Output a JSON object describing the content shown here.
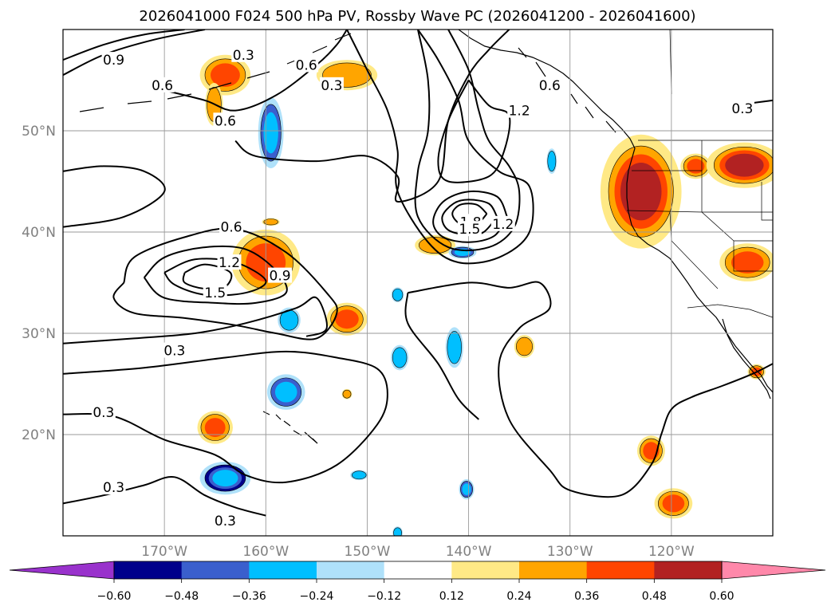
{
  "chart_data": {
    "type": "heatmap",
    "title": "2026041000 F024 500 hPa PV, Rossby Wave PC (2026041200 - 2026041600)",
    "map": {
      "lon_range": [
        -180,
        -110
      ],
      "lat_range": [
        10,
        60
      ],
      "lon_ticks": [
        -170,
        -160,
        -150,
        -140,
        -130,
        -120
      ],
      "lon_tick_labels": [
        "170°W",
        "160°W",
        "150°W",
        "140°W",
        "130°W",
        "120°W"
      ],
      "lat_ticks": [
        20,
        30,
        40,
        50
      ],
      "lat_tick_labels": [
        "20°N",
        "30°N",
        "40°N",
        "50°N"
      ],
      "grid": true
    },
    "colorbar": {
      "orientation": "horizontal",
      "extend": "both",
      "boundaries": [
        -0.6,
        -0.48,
        -0.36,
        -0.24,
        -0.12,
        0.12,
        0.24,
        0.36,
        0.48,
        0.6
      ],
      "tick_labels": [
        "−0.60",
        "−0.48",
        "−0.36",
        "−0.24",
        "−0.12",
        "0.12",
        "0.24",
        "0.36",
        "0.48",
        "0.60"
      ],
      "colors": [
        "#9932cc",
        "#00008b",
        "#3a5fcd",
        "#00bfff",
        "#afe1fa",
        "#ffffff",
        "#ffe986",
        "#ffa500",
        "#ff4500",
        "#b22222",
        "#ff88aa"
      ]
    },
    "contour_labels": [
      {
        "text": "0.9",
        "lon": -175.0,
        "lat": 57.0
      },
      {
        "text": "0.6",
        "lon": -170.2,
        "lat": 54.5
      },
      {
        "text": "0.3",
        "lon": -162.2,
        "lat": 57.5
      },
      {
        "text": "0.6",
        "lon": -156.0,
        "lat": 56.5
      },
      {
        "text": "0.3",
        "lon": -153.5,
        "lat": 54.5
      },
      {
        "text": "0.6",
        "lon": -164.0,
        "lat": 51.0
      },
      {
        "text": "0.6",
        "lon": -163.4,
        "lat": 40.5
      },
      {
        "text": "1.2",
        "lon": -163.6,
        "lat": 37.0
      },
      {
        "text": "0.9",
        "lon": -158.6,
        "lat": 35.7
      },
      {
        "text": "1.5",
        "lon": -165.0,
        "lat": 34.0
      },
      {
        "text": "0.3",
        "lon": -169.0,
        "lat": 28.3
      },
      {
        "text": "0.3",
        "lon": -176.0,
        "lat": 22.2
      },
      {
        "text": "0.3",
        "lon": -175.0,
        "lat": 14.8
      },
      {
        "text": "0.3",
        "lon": -164.0,
        "lat": 11.5
      },
      {
        "text": "1.2",
        "lon": -135.0,
        "lat": 52.0
      },
      {
        "text": "0.6",
        "lon": -132.0,
        "lat": 54.5
      },
      {
        "text": "1.8",
        "lon": -139.8,
        "lat": 41.0
      },
      {
        "text": "1.5",
        "lon": -139.9,
        "lat": 40.3
      },
      {
        "text": "1.2",
        "lon": -136.6,
        "lat": 40.8
      },
      {
        "text": "0.3",
        "lon": -113.0,
        "lat": 52.2
      }
    ],
    "contours": [
      {
        "value": 0.3,
        "points": [
          [
            -180,
            26.0
          ],
          [
            -172,
            26.6
          ],
          [
            -164,
            27.6
          ],
          [
            -158,
            28.2
          ],
          [
            -153,
            27.6
          ],
          [
            -149,
            26.5
          ],
          [
            -148,
            24.0
          ],
          [
            -149,
            21.0
          ],
          [
            -153,
            17.0
          ],
          [
            -158,
            15.3
          ],
          [
            -162,
            16.0
          ],
          [
            -165,
            18.0
          ],
          [
            -170,
            19.5
          ],
          [
            -175,
            21.8
          ],
          [
            -180,
            22.0
          ]
        ]
      },
      {
        "value": 0.3,
        "points": [
          [
            -180,
            13.2
          ],
          [
            -176,
            14.0
          ],
          [
            -172,
            15.0
          ],
          [
            -169,
            15.8
          ],
          [
            -166,
            14.0
          ],
          [
            -163,
            12.8
          ],
          [
            -160,
            12.0
          ]
        ]
      },
      {
        "value": 0.3,
        "points": [
          [
            -180,
            29.0
          ],
          [
            -173,
            29.5
          ],
          [
            -167,
            30.0
          ],
          [
            -162,
            31.0
          ],
          [
            -157,
            32.5
          ],
          [
            -155,
            33.5
          ],
          [
            -154,
            30.5
          ],
          [
            -156,
            29.7
          ]
        ]
      },
      {
        "value": 0.3,
        "points": [
          [
            -180,
            46.0
          ],
          [
            -176,
            46.5
          ],
          [
            -172,
            46.0
          ],
          [
            -170,
            44.0
          ],
          [
            -174,
            41.5
          ],
          [
            -180,
            40.5
          ]
        ]
      },
      {
        "value": 0.3,
        "points": [
          [
            -163,
            49.0
          ],
          [
            -161,
            47.5
          ],
          [
            -155,
            47.0
          ],
          [
            -150,
            47.5
          ],
          [
            -147,
            45.5
          ],
          [
            -147,
            43.0
          ],
          [
            -143,
            45.0
          ],
          [
            -142,
            51.0
          ],
          [
            -140,
            55.5
          ],
          [
            -138,
            58.0
          ],
          [
            -136,
            60.0
          ]
        ]
      },
      {
        "value": 0.3,
        "points": [
          [
            -146,
            34.0
          ],
          [
            -140,
            35.0
          ],
          [
            -136,
            34.5
          ],
          [
            -133,
            35.0
          ],
          [
            -132,
            32.5
          ],
          [
            -135,
            30.5
          ],
          [
            -137,
            27.0
          ],
          [
            -136,
            21.5
          ],
          [
            -132,
            16.5
          ],
          [
            -130,
            14.5
          ],
          [
            -125,
            14.0
          ],
          [
            -122,
            17.0
          ],
          [
            -121,
            20.0
          ],
          [
            -120,
            22.5
          ],
          [
            -118,
            23.7
          ],
          [
            -115,
            24.8
          ],
          [
            -112,
            26.0
          ],
          [
            -110,
            27.0
          ]
        ]
      },
      {
        "value": 0.3,
        "points": [
          [
            -146,
            34.0
          ],
          [
            -146,
            31.0
          ],
          [
            -143,
            27.0
          ],
          [
            -141,
            23.5
          ],
          [
            -139,
            21.5
          ]
        ]
      },
      {
        "value": 0.3,
        "points": [
          [
            -180,
            55.5
          ],
          [
            -176,
            57.5
          ],
          [
            -171,
            59.0
          ],
          [
            -166,
            60.0
          ]
        ]
      },
      {
        "value": 0.3,
        "points": [
          [
            -114,
            52.5
          ],
          [
            -110,
            53.0
          ]
        ]
      },
      {
        "value": 0.6,
        "points": [
          [
            -180,
            57.0
          ],
          [
            -176,
            58.5
          ],
          [
            -172,
            59.5
          ],
          [
            -168,
            60.0
          ]
        ]
      },
      {
        "value": 0.6,
        "points": [
          [
            -170,
            54.0
          ],
          [
            -166,
            53.0
          ],
          [
            -163,
            52.0
          ],
          [
            -159,
            53.5
          ],
          [
            -155,
            56.5
          ],
          [
            -153,
            58.5
          ],
          [
            -152,
            60.0
          ]
        ]
      },
      {
        "value": 0.6,
        "points": [
          [
            -174,
            35.0
          ],
          [
            -173,
            37.5
          ],
          [
            -168,
            39.5
          ],
          [
            -163,
            40.3
          ],
          [
            -158,
            38.0
          ],
          [
            -154,
            34.0
          ],
          [
            -153,
            32.0
          ],
          [
            -155,
            29.5
          ],
          [
            -159,
            30.0
          ],
          [
            -163,
            30.8
          ],
          [
            -168,
            31.5
          ],
          [
            -173,
            32.0
          ],
          [
            -175,
            33.5
          ],
          [
            -174,
            35.0
          ]
        ]
      },
      {
        "value": 0.6,
        "points": [
          [
            -145,
            60.0
          ],
          [
            -143,
            57.0
          ],
          [
            -141,
            53.0
          ],
          [
            -140,
            49.0
          ],
          [
            -137,
            46.0
          ],
          [
            -134,
            44.5
          ],
          [
            -134,
            40.0
          ],
          [
            -137,
            37.5
          ],
          [
            -141,
            37.0
          ],
          [
            -144,
            39.0
          ],
          [
            -147,
            44.0
          ],
          [
            -147,
            48.0
          ],
          [
            -148,
            52.0
          ],
          [
            -150,
            56.0
          ],
          [
            -152,
            60.0
          ]
        ]
      },
      {
        "value": 0.9,
        "points": [
          [
            -172,
            35.5
          ],
          [
            -170,
            37.5
          ],
          [
            -166,
            38.5
          ],
          [
            -162,
            38.3
          ],
          [
            -159,
            36.2
          ],
          [
            -158,
            34.0
          ],
          [
            -161,
            33.0
          ],
          [
            -165,
            33.0
          ],
          [
            -170,
            33.5
          ],
          [
            -172,
            35.5
          ]
        ]
      },
      {
        "value": 0.9,
        "points": [
          [
            -142,
            60.0
          ],
          [
            -140,
            56.0
          ],
          [
            -139,
            52.0
          ],
          [
            -138,
            49.0
          ],
          [
            -136,
            46.5
          ],
          [
            -135,
            44.0
          ],
          [
            -135.5,
            40.5
          ],
          [
            -138,
            38.5
          ],
          [
            -142,
            38.5
          ],
          [
            -145,
            41.5
          ],
          [
            -145,
            46.0
          ],
          [
            -144,
            50.0
          ],
          [
            -144,
            55.0
          ],
          [
            -145,
            60.0
          ]
        ]
      },
      {
        "value": 1.2,
        "points": [
          [
            -170,
            36.0
          ],
          [
            -167,
            37.3
          ],
          [
            -163,
            37.0
          ],
          [
            -160,
            35.2
          ],
          [
            -162,
            34.0
          ],
          [
            -166,
            33.8
          ],
          [
            -169,
            34.8
          ],
          [
            -170,
            36.0
          ]
        ]
      },
      {
        "value": 1.2,
        "points": [
          [
            -140,
            55.0
          ],
          [
            -138,
            52.5
          ],
          [
            -136,
            51.5
          ],
          [
            -136.5,
            48.0
          ],
          [
            -138,
            45.5
          ],
          [
            -142,
            45.0
          ],
          [
            -143,
            47.0
          ],
          [
            -142,
            51.0
          ],
          [
            -140,
            55.0
          ]
        ]
      },
      {
        "value": 1.2,
        "points": [
          [
            -136.2,
            41.5
          ],
          [
            -137.5,
            39.6
          ],
          [
            -140,
            39.0
          ],
          [
            -142.5,
            39.5
          ],
          [
            -143.5,
            41.0
          ],
          [
            -142.5,
            43.0
          ],
          [
            -140,
            44.0
          ],
          [
            -137.2,
            43.5
          ],
          [
            -136.2,
            41.5
          ]
        ]
      },
      {
        "value": 1.5,
        "points": [
          [
            -168,
            36.0
          ],
          [
            -166,
            36.8
          ],
          [
            -163.5,
            36.0
          ],
          [
            -164,
            34.6
          ],
          [
            -166,
            34.4
          ],
          [
            -168,
            35.0
          ],
          [
            -168,
            36.0
          ]
        ]
      },
      {
        "value": 1.5,
        "points": [
          [
            -137.2,
            41.5
          ],
          [
            -138.5,
            40.0
          ],
          [
            -140,
            39.7
          ],
          [
            -142,
            40.2
          ],
          [
            -142.6,
            41.5
          ],
          [
            -141.5,
            42.8
          ],
          [
            -140,
            43.2
          ],
          [
            -138,
            42.8
          ],
          [
            -137.2,
            41.5
          ]
        ]
      },
      {
        "value": 1.8,
        "points": [
          [
            -138.2,
            41.8
          ],
          [
            -139.2,
            40.8
          ],
          [
            -140.8,
            40.8
          ],
          [
            -141.6,
            41.8
          ],
          [
            -140.8,
            42.7
          ],
          [
            -139.2,
            42.7
          ],
          [
            -138.2,
            41.8
          ]
        ]
      }
    ],
    "pv_anomaly_areas": [
      {
        "lon": -164.0,
        "lat": 55.5,
        "rlon": 2.0,
        "rlat": 1.6,
        "value": 0.36
      },
      {
        "lon": -165.1,
        "lat": 52.6,
        "rlon": 0.7,
        "rlat": 1.7,
        "value": 0.24
      },
      {
        "lon": -152.0,
        "lat": 55.5,
        "rlon": 2.4,
        "rlat": 1.2,
        "value": 0.24
      },
      {
        "lon": -159.5,
        "lat": 49.8,
        "rlon": 1.0,
        "rlat": 2.8,
        "value": -0.36
      },
      {
        "lon": -160.0,
        "lat": 37.0,
        "rlon": 2.7,
        "rlat": 2.6,
        "value": 0.36
      },
      {
        "lon": -159.5,
        "lat": 41.0,
        "rlon": 0.7,
        "rlat": 0.3,
        "value": 0.24
      },
      {
        "lon": -157.7,
        "lat": 31.3,
        "rlon": 0.9,
        "rlat": 1.0,
        "value": -0.24
      },
      {
        "lon": -152.0,
        "lat": 31.4,
        "rlon": 1.6,
        "rlat": 1.3,
        "value": 0.36
      },
      {
        "lon": -147.0,
        "lat": 33.8,
        "rlon": 0.5,
        "rlat": 0.6,
        "value": -0.24
      },
      {
        "lon": -146.8,
        "lat": 27.6,
        "rlon": 0.7,
        "rlat": 1.0,
        "value": -0.24
      },
      {
        "lon": -143.3,
        "lat": 38.7,
        "rlon": 1.6,
        "rlat": 0.8,
        "value": 0.24
      },
      {
        "lon": -140.6,
        "lat": 38.0,
        "rlon": 1.1,
        "rlat": 0.5,
        "value": -0.36
      },
      {
        "lon": -141.4,
        "lat": 28.6,
        "rlon": 0.7,
        "rlat": 1.6,
        "value": -0.24
      },
      {
        "lon": -158.0,
        "lat": 24.2,
        "rlon": 1.5,
        "rlat": 1.4,
        "value": -0.36
      },
      {
        "lon": -152.0,
        "lat": 24.0,
        "rlon": 0.4,
        "rlat": 0.4,
        "value": 0.24
      },
      {
        "lon": -165.0,
        "lat": 20.7,
        "rlon": 1.4,
        "rlat": 1.3,
        "value": 0.36
      },
      {
        "lon": -164.0,
        "lat": 15.7,
        "rlon": 2.0,
        "rlat": 1.3,
        "value": -0.48
      },
      {
        "lon": -150.8,
        "lat": 16.0,
        "rlon": 0.7,
        "rlat": 0.4,
        "value": -0.24
      },
      {
        "lon": -147.0,
        "lat": 10.3,
        "rlon": 0.4,
        "rlat": 0.5,
        "value": -0.24
      },
      {
        "lon": -140.2,
        "lat": 14.6,
        "rlon": 0.6,
        "rlat": 0.8,
        "value": -0.36
      },
      {
        "lon": -134.5,
        "lat": 28.7,
        "rlon": 0.8,
        "rlat": 0.9,
        "value": 0.24
      },
      {
        "lon": -131.8,
        "lat": 47.0,
        "rlon": 0.4,
        "rlat": 1.0,
        "value": -0.24
      },
      {
        "lon": -123.0,
        "lat": 44.0,
        "rlon": 3.2,
        "rlat": 4.5,
        "value": 0.48
      },
      {
        "lon": -117.6,
        "lat": 46.5,
        "rlon": 1.2,
        "rlat": 1.0,
        "value": 0.36
      },
      {
        "lon": -112.8,
        "lat": 46.6,
        "rlon": 3.0,
        "rlat": 1.8,
        "value": 0.48
      },
      {
        "lon": -112.5,
        "lat": 37.0,
        "rlon": 2.2,
        "rlat": 1.5,
        "value": 0.36
      },
      {
        "lon": -111.6,
        "lat": 26.2,
        "rlon": 0.7,
        "rlat": 0.6,
        "value": 0.36
      },
      {
        "lon": -122.0,
        "lat": 18.4,
        "rlon": 1.1,
        "rlat": 1.2,
        "value": 0.36
      },
      {
        "lon": -119.8,
        "lat": 13.2,
        "rlon": 1.5,
        "rlat": 1.2,
        "value": 0.36
      }
    ]
  }
}
